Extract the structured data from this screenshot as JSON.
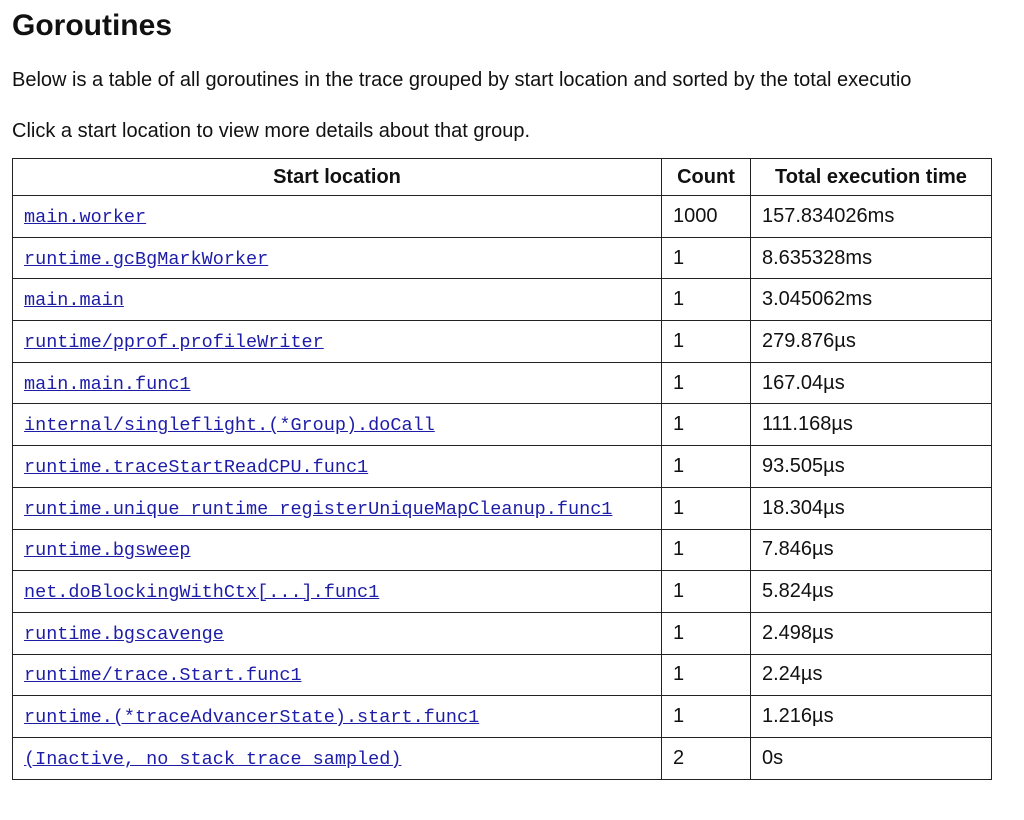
{
  "header": {
    "title": "Goroutines"
  },
  "paragraphs": [
    "Below is a table of all goroutines in the trace grouped by start location and sorted by the total executio",
    "Click a start location to view more details about that group."
  ],
  "table": {
    "columns": [
      "Start location",
      "Count",
      "Total execution time"
    ],
    "rows": [
      [
        "main.worker",
        1000,
        "157.834026ms"
      ],
      [
        "runtime.gcBgMarkWorker",
        1,
        "8.635328ms"
      ],
      [
        "main.main",
        1,
        "3.045062ms"
      ],
      [
        "runtime/pprof.profileWriter",
        1,
        "279.876µs"
      ],
      [
        "main.main.func1",
        1,
        "167.04µs"
      ],
      [
        "internal/singleflight.(*Group).doCall",
        1,
        "111.168µs"
      ],
      [
        "runtime.traceStartReadCPU.func1",
        1,
        "93.505µs"
      ],
      [
        "runtime.unique_runtime_registerUniqueMapCleanup.func1",
        1,
        "18.304µs"
      ],
      [
        "runtime.bgsweep",
        1,
        "7.846µs"
      ],
      [
        "net.doBlockingWithCtx[...].func1",
        1,
        "5.824µs"
      ],
      [
        "runtime.bgscavenge",
        1,
        "2.498µs"
      ],
      [
        "runtime/trace.Start.func1",
        1,
        "2.24µs"
      ],
      [
        "runtime.(*traceAdvancerState).start.func1",
        1,
        "1.216µs"
      ],
      [
        "(Inactive, no stack trace sampled)",
        2,
        "0s"
      ]
    ]
  }
}
